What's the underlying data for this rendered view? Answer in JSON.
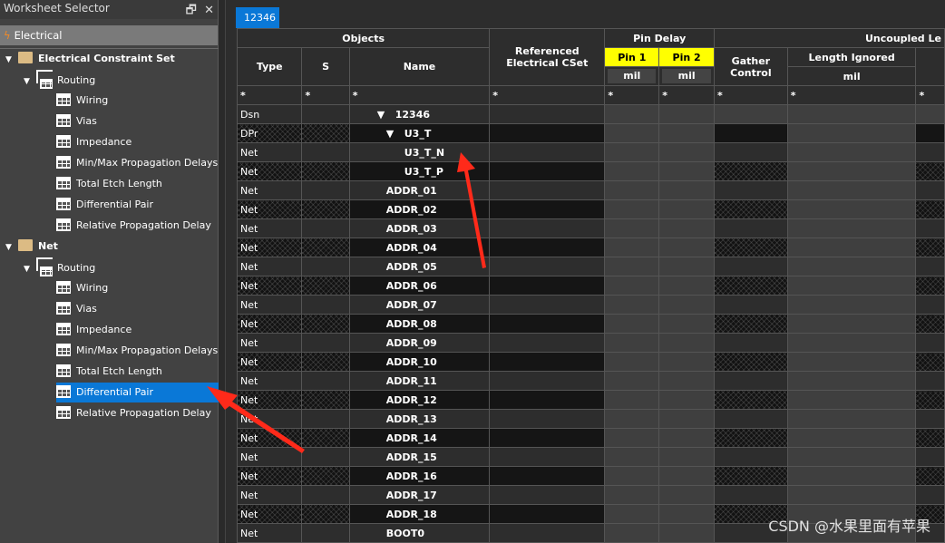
{
  "sidebar": {
    "title": "Worksheet Selector",
    "category": "Electrical",
    "items": [
      {
        "label": "Electrical Constraint Set",
        "kind": "folder",
        "level": 0
      },
      {
        "label": "Routing",
        "kind": "stack",
        "level": 1
      },
      {
        "label": "Wiring",
        "kind": "grid",
        "level": 2
      },
      {
        "label": "Vias",
        "kind": "grid",
        "level": 2
      },
      {
        "label": "Impedance",
        "kind": "grid",
        "level": 2
      },
      {
        "label": "Min/Max Propagation Delays",
        "kind": "grid",
        "level": 2
      },
      {
        "label": "Total Etch Length",
        "kind": "grid",
        "level": 2
      },
      {
        "label": "Differential Pair",
        "kind": "grid",
        "level": 2
      },
      {
        "label": "Relative Propagation Delay",
        "kind": "grid",
        "level": 2
      },
      {
        "label": "Net",
        "kind": "folder",
        "level": 0
      },
      {
        "label": "Routing",
        "kind": "stack",
        "level": 1
      },
      {
        "label": "Wiring",
        "kind": "grid",
        "level": 2
      },
      {
        "label": "Vias",
        "kind": "grid",
        "level": 2
      },
      {
        "label": "Impedance",
        "kind": "grid",
        "level": 2
      },
      {
        "label": "Min/Max Propagation Delays",
        "kind": "grid",
        "level": 2
      },
      {
        "label": "Total Etch Length",
        "kind": "grid",
        "level": 2
      },
      {
        "label": "Differential Pair",
        "kind": "grid",
        "level": 2,
        "selected": true
      },
      {
        "label": "Relative Propagation Delay",
        "kind": "grid",
        "level": 2
      }
    ]
  },
  "tab": "12346",
  "headers": {
    "objects": "Objects",
    "type": "Type",
    "s": "S",
    "name": "Name",
    "ref": "Referenced Electrical CSet",
    "pin_delay": "Pin Delay",
    "pin1": "Pin 1",
    "pin2": "Pin 2",
    "unit": "mil",
    "gather": "Gather Control",
    "uncoupled": "Uncoupled Le",
    "length_ignored": "Length Ignored",
    "filter": "*"
  },
  "rows": [
    {
      "type": "Dsn",
      "name": "12346",
      "level": 0,
      "expanded": true
    },
    {
      "type": "DPr",
      "name": "U3_T",
      "level": 1,
      "expanded": true
    },
    {
      "type": "Net",
      "name": "U3_T_N",
      "level": 2
    },
    {
      "type": "Net",
      "name": "U3_T_P",
      "level": 2
    },
    {
      "type": "Net",
      "name": "ADDR_01",
      "level": 1
    },
    {
      "type": "Net",
      "name": "ADDR_02",
      "level": 1
    },
    {
      "type": "Net",
      "name": "ADDR_03",
      "level": 1
    },
    {
      "type": "Net",
      "name": "ADDR_04",
      "level": 1
    },
    {
      "type": "Net",
      "name": "ADDR_05",
      "level": 1
    },
    {
      "type": "Net",
      "name": "ADDR_06",
      "level": 1
    },
    {
      "type": "Net",
      "name": "ADDR_07",
      "level": 1
    },
    {
      "type": "Net",
      "name": "ADDR_08",
      "level": 1
    },
    {
      "type": "Net",
      "name": "ADDR_09",
      "level": 1
    },
    {
      "type": "Net",
      "name": "ADDR_10",
      "level": 1
    },
    {
      "type": "Net",
      "name": "ADDR_11",
      "level": 1
    },
    {
      "type": "Net",
      "name": "ADDR_12",
      "level": 1
    },
    {
      "type": "Net",
      "name": "ADDR_13",
      "level": 1
    },
    {
      "type": "Net",
      "name": "ADDR_14",
      "level": 1
    },
    {
      "type": "Net",
      "name": "ADDR_15",
      "level": 1
    },
    {
      "type": "Net",
      "name": "ADDR_16",
      "level": 1
    },
    {
      "type": "Net",
      "name": "ADDR_17",
      "level": 1
    },
    {
      "type": "Net",
      "name": "ADDR_18",
      "level": 1
    },
    {
      "type": "Net",
      "name": "BOOT0",
      "level": 1
    }
  ],
  "watermark": "CSDN @水果里面有苹果",
  "colors": {
    "accent": "#0a78d7",
    "pin_header": "#ffff00",
    "arrow": "#ff2a1a"
  }
}
